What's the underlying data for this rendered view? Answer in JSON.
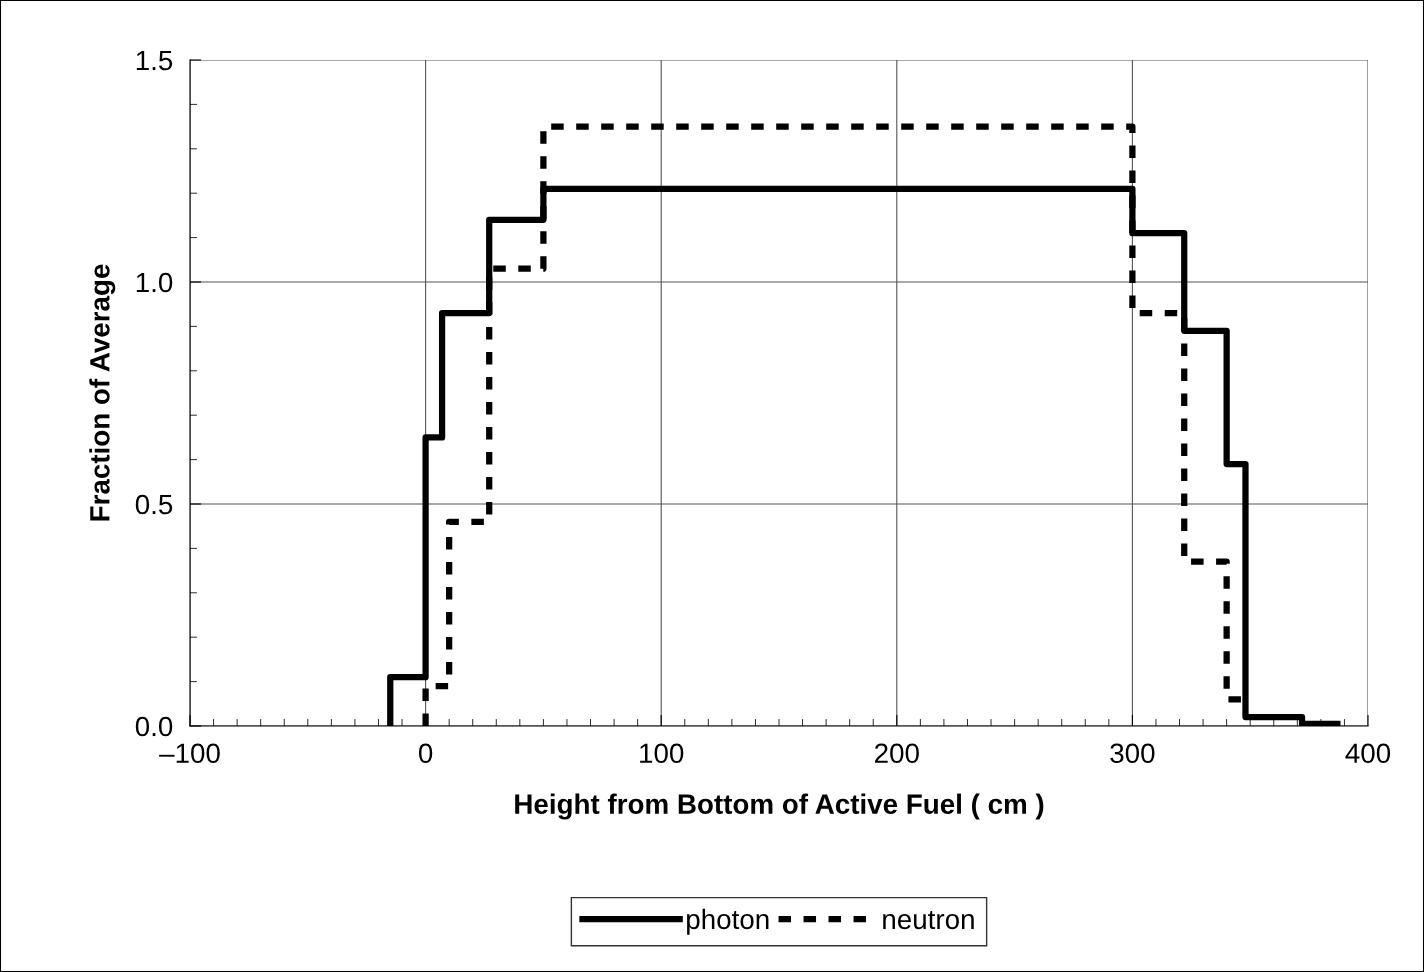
{
  "chart_data": {
    "type": "step",
    "xlabel": "Height from Bottom of Active Fuel ( cm )",
    "ylabel": "Fraction of Average",
    "xlim": [
      -100,
      400
    ],
    "xticks": [
      {
        "value": -100,
        "label": "–100"
      },
      0,
      100,
      200,
      300,
      400
    ],
    "ylim": [
      0,
      1.5
    ],
    "yticks": [
      {
        "value": 0,
        "label": "0.0"
      },
      0.5,
      {
        "value": 1,
        "label": "1.0"
      },
      1.5
    ],
    "grid": true,
    "legend": "bottom",
    "series": [
      {
        "name": "photon",
        "color": "#000000",
        "line_style": "solid",
        "x": [
          -15,
          -15,
          0,
          7,
          27,
          50,
          300,
          322,
          340,
          348,
          372,
          387
        ],
        "values": [
          0,
          0.11,
          0.65,
          0.93,
          1.14,
          1.21,
          1.11,
          0.89,
          0.59,
          0.02,
          0.005,
          0.005
        ]
      },
      {
        "name": "neutron",
        "color": "#000000",
        "line_style": "dashed",
        "x": [
          0,
          0,
          10,
          27,
          50,
          300,
          322,
          340,
          347
        ],
        "values": [
          0,
          0.09,
          0.46,
          1.03,
          1.35,
          0.93,
          0.37,
          0.06,
          0.06
        ]
      }
    ]
  }
}
